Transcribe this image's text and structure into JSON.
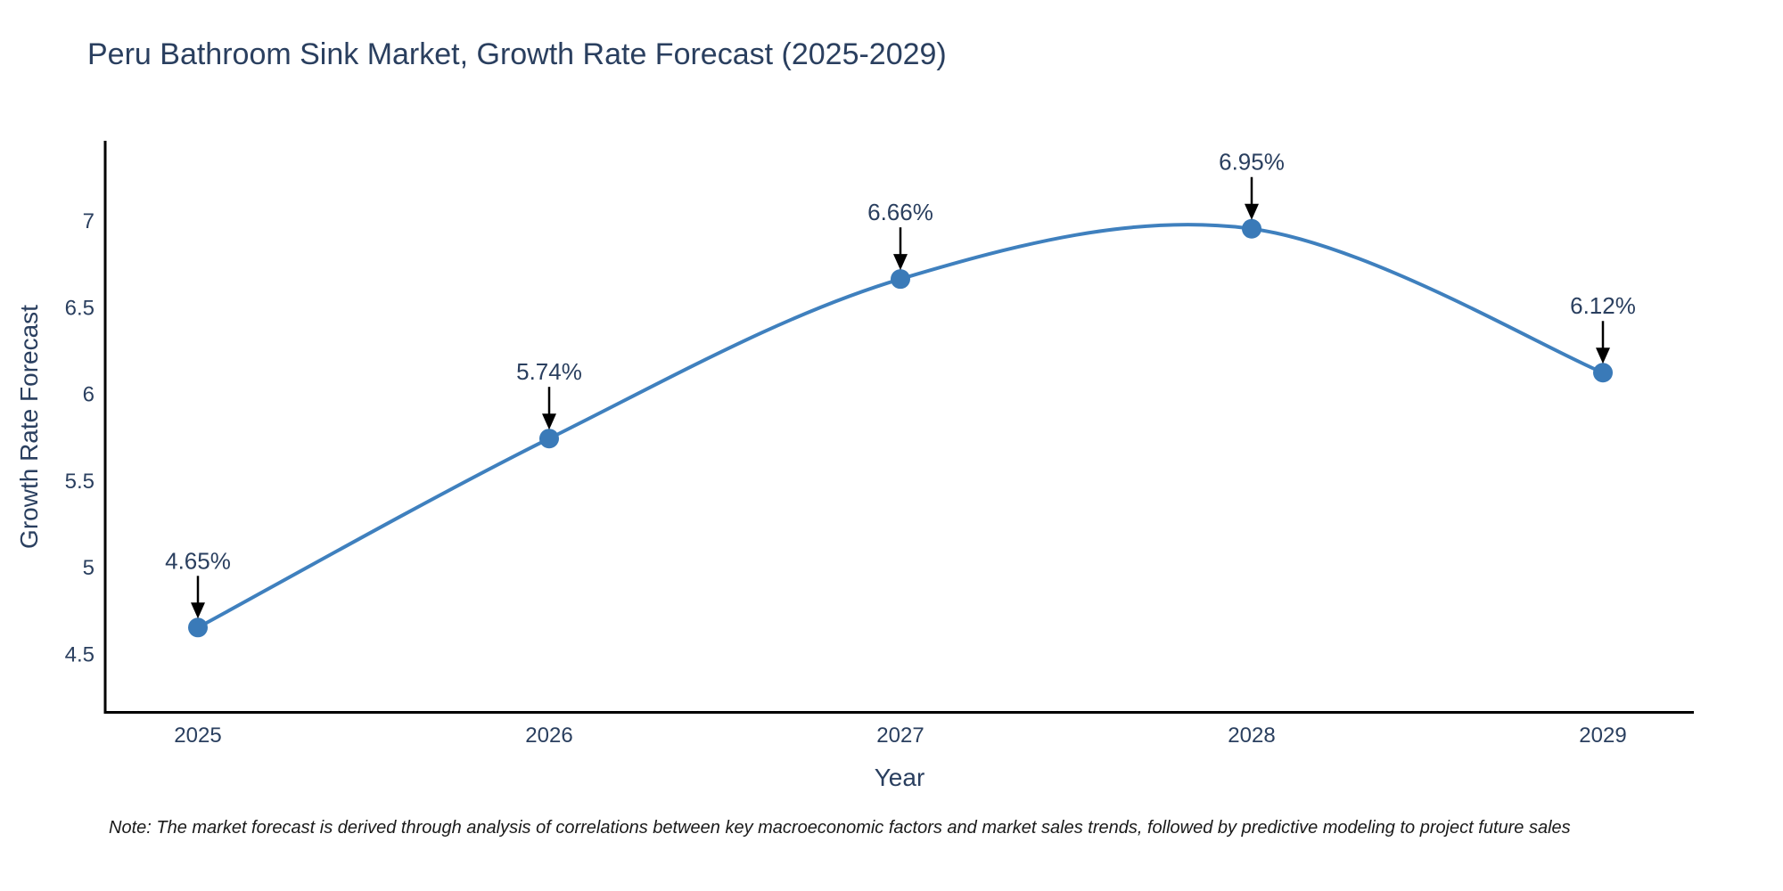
{
  "title": "Peru Bathroom Sink Market, Growth Rate Forecast (2025-2029)",
  "note": "Note: The market forecast is derived through analysis of correlations between key macroeconomic factors and market sales trends, followed by predictive modeling to project future sales",
  "chart_data": {
    "type": "line",
    "line_shape": "spline",
    "title": "Peru Bathroom Sink Market, Growth Rate Forecast (2025-2029)",
    "xlabel": "Year",
    "ylabel": "Growth Rate Forecast",
    "categories": [
      2025,
      2026,
      2027,
      2028,
      2029
    ],
    "values": [
      4.65,
      5.74,
      6.66,
      6.95,
      6.12
    ],
    "point_labels": [
      "4.65%",
      "5.74%",
      "6.66%",
      "6.95%",
      "6.12%"
    ],
    "yticks": [
      4.5,
      5,
      5.5,
      6,
      6.5,
      7
    ],
    "ytick_labels": [
      "4.5",
      "5",
      "5.5",
      "6",
      "6.5",
      "7"
    ],
    "xtick_labels": [
      "2025",
      "2026",
      "2027",
      "2028",
      "2029"
    ],
    "ylim": [
      4.15,
      7.45
    ],
    "xlim": [
      2024.74,
      2029.26
    ],
    "grid": false,
    "legend": "none",
    "colors": {
      "line": "#3f80be",
      "marker": "#3a7ab8",
      "text": "#2a3f5f",
      "axis_line": "#000000",
      "annotation_arrow": "#000000",
      "note_text": "#1a1a1a",
      "background": "#ffffff"
    }
  }
}
